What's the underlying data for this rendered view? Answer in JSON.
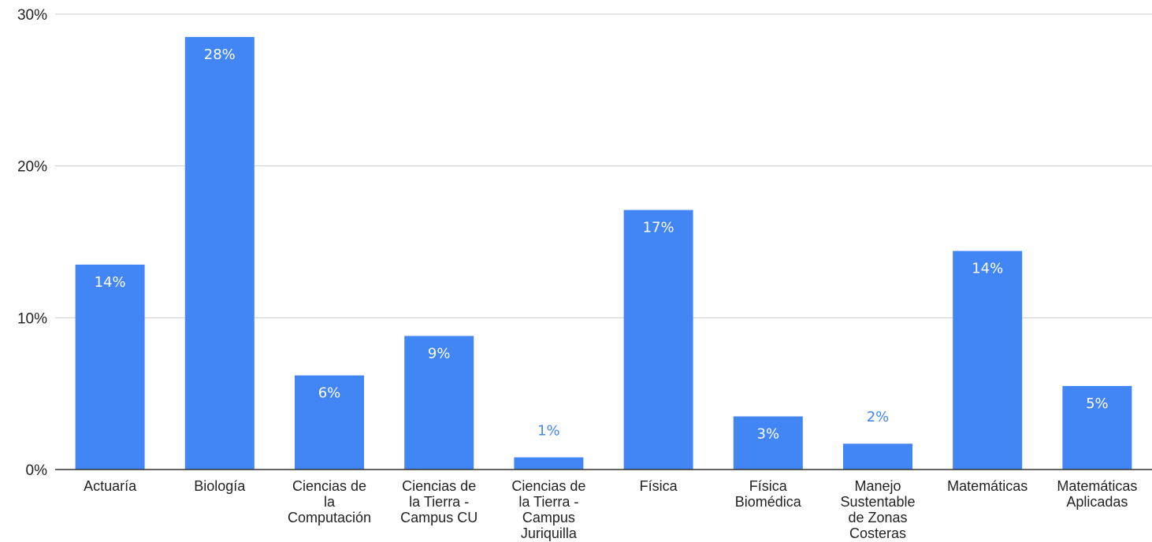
{
  "chart_data": {
    "type": "bar",
    "categories": [
      [
        "Actuaría"
      ],
      [
        "Biología"
      ],
      [
        "Ciencias de",
        "la",
        "Computación"
      ],
      [
        "Ciencias de",
        "la Tierra -",
        "Campus CU"
      ],
      [
        "Ciencias de",
        "la Tierra -",
        "Campus",
        "Juriquilla"
      ],
      [
        "Física"
      ],
      [
        "Física",
        "Biomédica"
      ],
      [
        "Manejo",
        "Sustentable",
        "de Zonas",
        "Costeras"
      ],
      [
        "Matemáticas"
      ],
      [
        "Matemáticas",
        "Aplicadas"
      ]
    ],
    "values": [
      13.5,
      28.5,
      6.2,
      8.8,
      0.8,
      17.1,
      3.5,
      1.7,
      14.4,
      5.5
    ],
    "data_labels": [
      "14%",
      "28%",
      "6%",
      "9%",
      "1%",
      "17%",
      "3%",
      "2%",
      "14%",
      "5%"
    ],
    "yticks": [
      0,
      10,
      20,
      30
    ],
    "ytick_labels": [
      "0%",
      "10%",
      "20%",
      "30%"
    ],
    "ylim": [
      0,
      30
    ],
    "grid": true,
    "legend": "none",
    "colors": {
      "bar": "#4285f4",
      "label_inside": "#ffffff",
      "label_outside": "#4285f4",
      "grid": "#cccccc",
      "axis": "#333333"
    }
  }
}
